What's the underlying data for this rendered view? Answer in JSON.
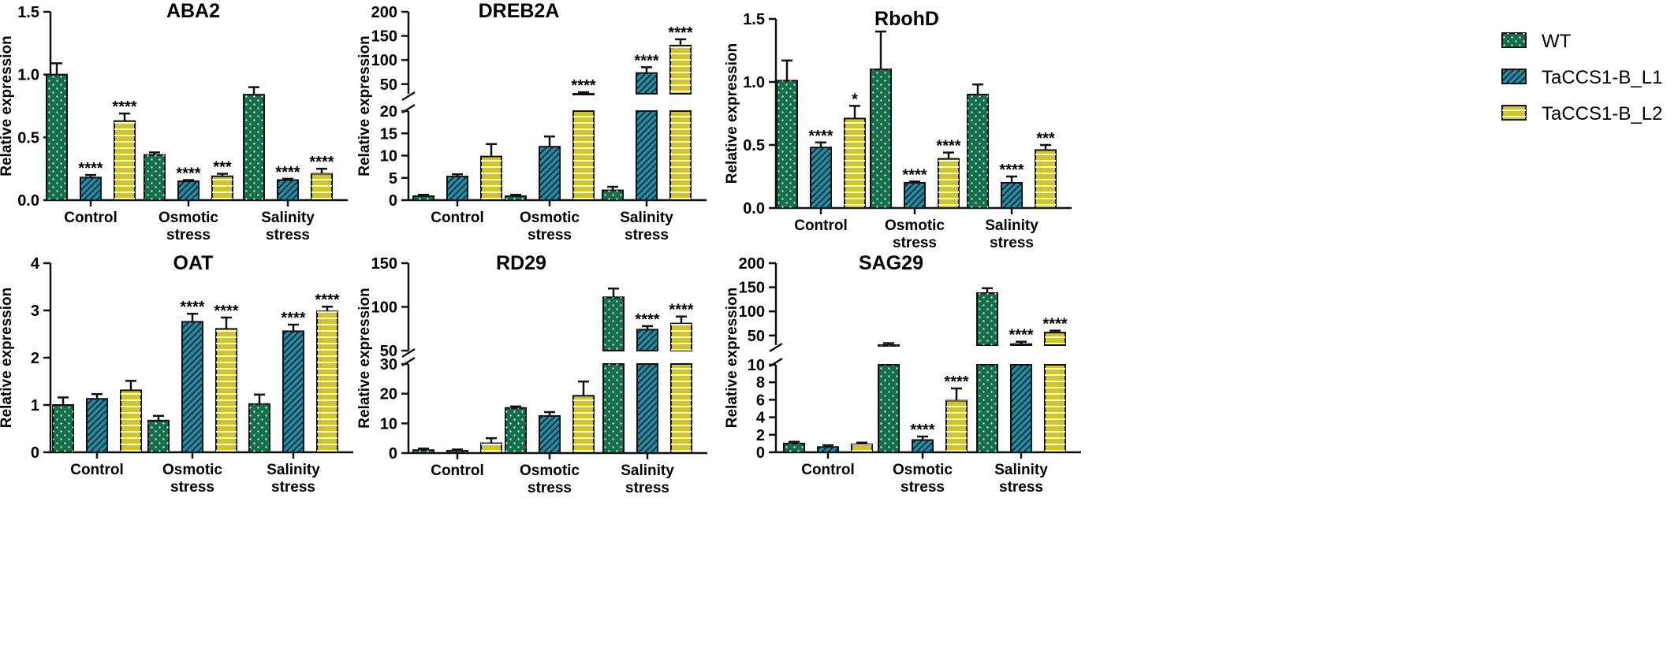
{
  "colors": {
    "WT": "#13704a",
    "TaCCS1-B_L1": "#1f8da3",
    "TaCCS1-B_L2": "#cfc61f"
  },
  "legend": [
    "WT",
    "TaCCS1-B_L1",
    "TaCCS1-B_L2"
  ],
  "chart_data": [
    {
      "type": "bar",
      "title": "ABA2",
      "ylabel": "Relative expression",
      "categories": [
        "Control",
        "Osmotic stress",
        "Salinity stress"
      ],
      "category_lines": [
        [
          "Control"
        ],
        [
          "Osmotic",
          "stress"
        ],
        [
          "Salinity",
          "stress"
        ]
      ],
      "ylim": [
        0,
        1.5
      ],
      "yticks": [
        "0.0",
        "0.5",
        "1.0",
        "1.5"
      ],
      "series": [
        {
          "name": "WT",
          "values": [
            1.0,
            0.36,
            0.84
          ],
          "errors": [
            0.09,
            0.02,
            0.06
          ],
          "sig": [
            "",
            "",
            ""
          ]
        },
        {
          "name": "TaCCS1-B_L1",
          "values": [
            0.18,
            0.15,
            0.16
          ],
          "errors": [
            0.02,
            0.01,
            0.01
          ],
          "sig": [
            "****",
            "****",
            "****"
          ]
        },
        {
          "name": "TaCCS1-B_L2",
          "values": [
            0.63,
            0.19,
            0.21
          ],
          "errors": [
            0.06,
            0.02,
            0.04
          ],
          "sig": [
            "****",
            "***",
            "****"
          ]
        }
      ]
    },
    {
      "type": "bar",
      "title": "DREB2A",
      "ylabel": "Relative expression",
      "categories": [
        "Control",
        "Osmotic stress",
        "Salinity stress"
      ],
      "category_lines": [
        [
          "Control"
        ],
        [
          "Osmotic",
          "stress"
        ],
        [
          "Salinity",
          "stress"
        ]
      ],
      "ylim": [
        0,
        200
      ],
      "axis_break": [
        20,
        30
      ],
      "yticks": [
        "0",
        "5",
        "10",
        "15",
        "20",
        "50",
        "100",
        "150",
        "200"
      ],
      "series": [
        {
          "name": "WT",
          "values": [
            0.9,
            0.9,
            2.2
          ],
          "errors": [
            0.3,
            0.3,
            0.8
          ],
          "sig": [
            "",
            "",
            ""
          ]
        },
        {
          "name": "TaCCS1-B_L1",
          "values": [
            5.3,
            12.0,
            73
          ],
          "errors": [
            0.5,
            2.3,
            12
          ],
          "sig": [
            "",
            "",
            "****"
          ]
        },
        {
          "name": "TaCCS1-B_L2",
          "values": [
            9.8,
            30,
            130
          ],
          "errors": [
            2.8,
            3,
            13
          ],
          "sig": [
            "",
            "****",
            "****"
          ]
        }
      ]
    },
    {
      "type": "bar",
      "title": "RbohD",
      "ylabel": "Relative expression",
      "categories": [
        "Control",
        "Osmotic stress",
        "Salinity stress"
      ],
      "category_lines": [
        [
          "Control"
        ],
        [
          "Osmotic",
          "stress"
        ],
        [
          "Salinity",
          "stress"
        ]
      ],
      "ylim": [
        0,
        1.5
      ],
      "yticks": [
        "0.0",
        "0.5",
        "1.0",
        "1.5"
      ],
      "series": [
        {
          "name": "WT",
          "values": [
            1.01,
            1.1,
            0.9
          ],
          "errors": [
            0.16,
            0.3,
            0.08
          ],
          "sig": [
            "",
            "",
            ""
          ]
        },
        {
          "name": "TaCCS1-B_L1",
          "values": [
            0.48,
            0.2,
            0.2
          ],
          "errors": [
            0.04,
            0.01,
            0.05
          ],
          "sig": [
            "****",
            "****",
            "****"
          ]
        },
        {
          "name": "TaCCS1-B_L2",
          "values": [
            0.71,
            0.39,
            0.46
          ],
          "errors": [
            0.1,
            0.05,
            0.04
          ],
          "sig": [
            "*",
            "****",
            "***"
          ]
        }
      ]
    },
    {
      "type": "bar",
      "title": "OAT",
      "ylabel": "Relative expression",
      "categories": [
        "Control",
        "Osmotic stress",
        "Salinity stress"
      ],
      "category_lines": [
        [
          "Control"
        ],
        [
          "Osmotic",
          "stress"
        ],
        [
          "Salinity",
          "stress"
        ]
      ],
      "ylim": [
        0,
        4
      ],
      "yticks": [
        "0",
        "1",
        "2",
        "3",
        "4"
      ],
      "series": [
        {
          "name": "WT",
          "values": [
            1.0,
            0.67,
            1.02
          ],
          "errors": [
            0.16,
            0.1,
            0.2
          ],
          "sig": [
            "",
            "",
            ""
          ]
        },
        {
          "name": "TaCCS1-B_L1",
          "values": [
            1.13,
            2.76,
            2.56
          ],
          "errors": [
            0.1,
            0.17,
            0.14
          ],
          "sig": [
            "",
            "****",
            "****"
          ]
        },
        {
          "name": "TaCCS1-B_L2",
          "values": [
            1.31,
            2.61,
            2.98
          ],
          "errors": [
            0.2,
            0.24,
            0.1
          ],
          "sig": [
            "",
            "****",
            "****"
          ]
        }
      ]
    },
    {
      "type": "bar",
      "title": "RD29",
      "ylabel": "Relative expression",
      "categories": [
        "Control",
        "Osmotic stress",
        "Salinity stress"
      ],
      "category_lines": [
        [
          "Control"
        ],
        [
          "Osmotic",
          "stress"
        ],
        [
          "Salinity",
          "stress"
        ]
      ],
      "ylim": [
        0,
        150
      ],
      "axis_break": [
        30,
        30
      ],
      "yticks": [
        "0",
        "10",
        "20",
        "30",
        "50",
        "100",
        "150"
      ],
      "series": [
        {
          "name": "WT",
          "values": [
            1.0,
            15.2,
            111
          ],
          "errors": [
            0.5,
            0.5,
            10
          ],
          "sig": [
            "",
            "",
            ""
          ]
        },
        {
          "name": "TaCCS1-B_L1",
          "values": [
            0.8,
            12.5,
            74
          ],
          "errors": [
            0.4,
            1.3,
            4
          ],
          "sig": [
            "",
            "",
            "****"
          ]
        },
        {
          "name": "TaCCS1-B_L2",
          "values": [
            3.3,
            19.3,
            81
          ],
          "errors": [
            1.7,
            4.8,
            8
          ],
          "sig": [
            "",
            "",
            "****"
          ]
        }
      ]
    },
    {
      "type": "bar",
      "title": "SAG29",
      "ylabel": "Relative expression",
      "categories": [
        "Control",
        "Osmotic stress",
        "Salinity stress"
      ],
      "category_lines": [
        [
          "Control"
        ],
        [
          "Osmotic",
          "stress"
        ],
        [
          "Salinity",
          "stress"
        ]
      ],
      "ylim": [
        0,
        200
      ],
      "axis_break": [
        10,
        10
      ],
      "yticks": [
        "0",
        "2",
        "4",
        "6",
        "8",
        "10",
        "50",
        "100",
        "150",
        "200"
      ],
      "series": [
        {
          "name": "WT",
          "values": [
            1.0,
            28,
            138
          ],
          "errors": [
            0.2,
            6,
            10
          ],
          "sig": [
            "",
            "",
            ""
          ]
        },
        {
          "name": "TaCCS1-B_L1",
          "values": [
            0.6,
            1.4,
            32
          ],
          "errors": [
            0.2,
            0.4,
            5
          ],
          "sig": [
            "",
            "****",
            "****"
          ]
        },
        {
          "name": "TaCCS1-B_L2",
          "values": [
            0.9,
            5.9,
            56
          ],
          "errors": [
            0.2,
            1.4,
            4
          ],
          "sig": [
            "",
            "****",
            "****"
          ]
        }
      ]
    }
  ]
}
